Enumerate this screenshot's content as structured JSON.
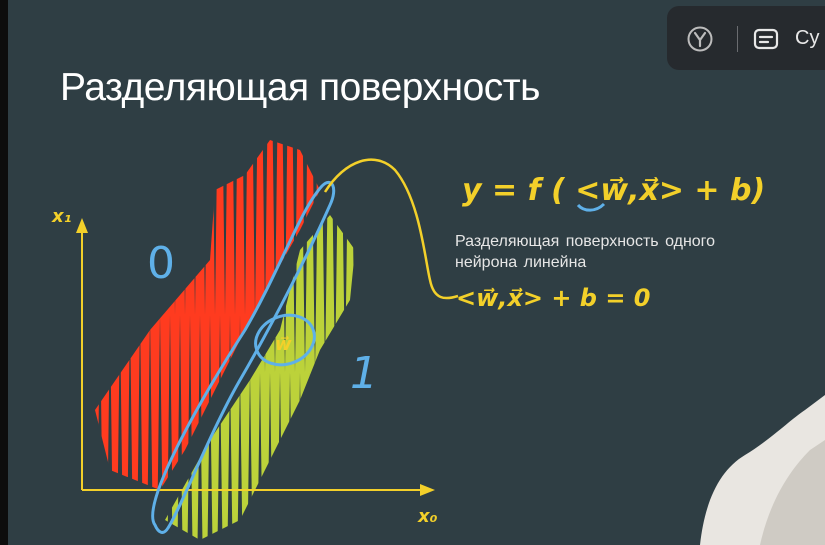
{
  "slide": {
    "title": "Разделяющая поверхность",
    "formula_main": "y = f ( <w⃗,x⃗> + b)",
    "caption_line1": "Разделяющая поверхность одного",
    "caption_line2": "нейрона линейна",
    "formula_boundary": "<w⃗,x⃗> + b = 0",
    "axis_y_label": "x₁",
    "axis_x_label": "x₀",
    "class_0_label": "0",
    "class_1_label": "1",
    "normal_vector_label": "w⃗"
  },
  "overlay": {
    "yandex_icon": "yandex-logo-icon",
    "subtitles_icon": "subtitles-icon",
    "subtitles_label": "Су"
  },
  "colors": {
    "background": "#2f3e44",
    "class_0": "#ff3b1f",
    "class_1": "#bcd23a",
    "boundary": "#5fb0e8",
    "annotation": "#f3d02a",
    "axes": "#f3d02a"
  }
}
